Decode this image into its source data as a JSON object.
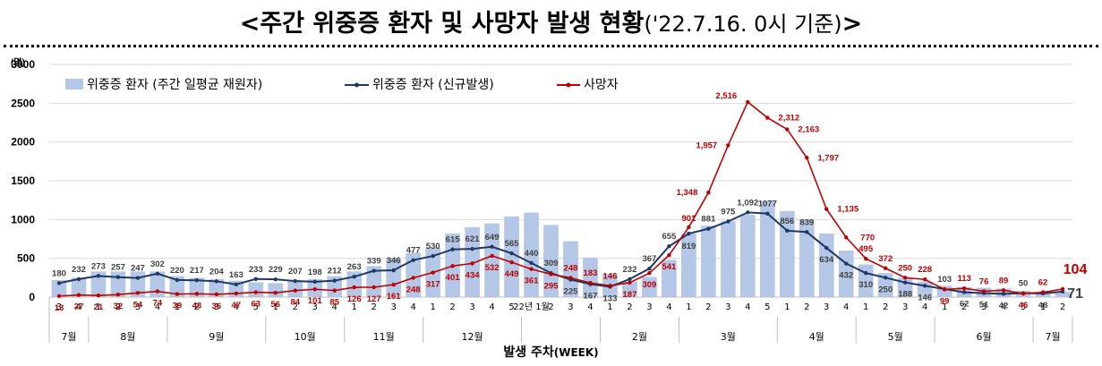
{
  "title": {
    "main": "<주간 위중증 환자 및 사망자 발생 현황",
    "sub": "('22.7.16. 0시 기준)",
    "close": ">"
  },
  "chart_data": {
    "type": "bar",
    "y_unit": "(명)",
    "ylim": [
      0,
      3000
    ],
    "yticks": [
      0,
      500,
      1000,
      1500,
      2000,
      2500,
      3000
    ],
    "yticklabels": [
      "0",
      "500",
      "1000",
      "1500",
      "2000",
      "2500",
      "3000"
    ],
    "xlabel": "발생 주차",
    "xlabel_suffix": "(WEEK)",
    "legend": {
      "bars": "위중증 환자 (주간 일평균 재원자)",
      "line_severe": "위중증 환자 (신규발생)",
      "line_deaths": "사망자"
    },
    "week_labels": [
      "3",
      "4",
      "1",
      "2",
      "3",
      "4",
      "1",
      "2",
      "3",
      "4",
      "5",
      "1",
      "2",
      "3",
      "4",
      "1",
      "2",
      "3",
      "4",
      "1",
      "2",
      "3",
      "4",
      "5",
      "22년 1월",
      "2",
      "3",
      "4",
      "1",
      "2",
      "3",
      "4",
      "1",
      "2",
      "3",
      "4",
      "5",
      "1",
      "2",
      "3",
      "4",
      "1",
      "2",
      "3",
      "4",
      "1",
      "2",
      "3",
      "4",
      "5",
      "1",
      "2"
    ],
    "months": [
      {
        "label": "7월",
        "start": 0,
        "count": 2
      },
      {
        "label": "8월",
        "start": 2,
        "count": 4
      },
      {
        "label": "9월",
        "start": 6,
        "count": 5
      },
      {
        "label": "10월",
        "start": 11,
        "count": 4
      },
      {
        "label": "11월",
        "start": 15,
        "count": 4
      },
      {
        "label": "12월",
        "start": 19,
        "count": 5
      },
      {
        "label": "",
        "start": 24,
        "count": 4
      },
      {
        "label": "2월",
        "start": 28,
        "count": 4
      },
      {
        "label": "3월",
        "start": 32,
        "count": 5
      },
      {
        "label": "4월",
        "start": 37,
        "count": 4
      },
      {
        "label": "5월",
        "start": 41,
        "count": 4
      },
      {
        "label": "6월",
        "start": 45,
        "count": 5
      },
      {
        "label": "7월",
        "start": 50,
        "count": 2
      }
    ],
    "bar_values": [
      220,
      250,
      330,
      330,
      330,
      330,
      270,
      250,
      230,
      210,
      190,
      180,
      210,
      230,
      270,
      330,
      400,
      500,
      570,
      640,
      820,
      900,
      950,
      1040,
      1090,
      930,
      720,
      510,
      300,
      200,
      260,
      480,
      819,
      920,
      980,
      1060,
      1240,
      1110,
      1000,
      820,
      600,
      420,
      310,
      250,
      200,
      146,
      130,
      120,
      110,
      80,
      60,
      71
    ],
    "severe_values": [
      180,
      232,
      273,
      257,
      247,
      302,
      220,
      217,
      204,
      163,
      233,
      229,
      207,
      198,
      212,
      263,
      339,
      346,
      477,
      530,
      615,
      621,
      649,
      565,
      440,
      309,
      225,
      167,
      133,
      232,
      367,
      655,
      819,
      881,
      975,
      1092,
      1077,
      856,
      839,
      634,
      432,
      310,
      250,
      188,
      146,
      103,
      62,
      51,
      42,
      50,
      48,
      71
    ],
    "severe_labels": [
      "180",
      "232",
      "273",
      "257",
      "247",
      "302",
      "220",
      "217",
      "204",
      "163",
      "233",
      "229",
      "207",
      "198",
      "212",
      "263",
      "339",
      "346",
      "477",
      "530",
      "615",
      "621",
      "649",
      "565",
      "440",
      "309",
      "225",
      "167",
      "133",
      "232",
      "367",
      "655",
      "819",
      "881",
      "975",
      "1,092",
      "1077",
      "856",
      "839",
      "634",
      "432",
      "310",
      "250",
      "188",
      "146",
      "103",
      "62",
      "51",
      "42",
      "50",
      "48",
      "71"
    ],
    "death_values": [
      13,
      27,
      21,
      32,
      54,
      74,
      39,
      43,
      36,
      47,
      63,
      56,
      84,
      101,
      85,
      126,
      127,
      161,
      248,
      317,
      401,
      434,
      532,
      449,
      361,
      295,
      248,
      183,
      146,
      187,
      309,
      541,
      901,
      1348,
      1957,
      2516,
      2312,
      2163,
      1797,
      1135,
      770,
      495,
      372,
      250,
      228,
      99,
      113,
      76,
      89,
      46,
      62,
      104
    ],
    "death_labels": [
      "13",
      "27",
      "21",
      "32",
      "54",
      "74",
      "39",
      "43",
      "36",
      "47",
      "63",
      "56",
      "84",
      "101",
      "85",
      "126",
      "127",
      "161",
      "248",
      "317",
      "401",
      "434",
      "532",
      "449",
      "361",
      "295",
      "248",
      "183",
      "146",
      "187",
      "309",
      "541",
      "901",
      "1,348",
      "1,957",
      "2,516",
      "2,312",
      "2,163",
      "1,797",
      "1,135",
      "770",
      "495",
      "372",
      "250",
      "228",
      "99",
      "113",
      "76",
      "89",
      "46",
      "62",
      "104"
    ],
    "colors": {
      "bars": "#b4c7e7",
      "severe_line": "#1f3864",
      "deaths_line": "#c00000",
      "severe_label": "#404040",
      "death_label": "#c00000",
      "gridline": "#d9d9d9",
      "axis_text": "#000000"
    }
  }
}
